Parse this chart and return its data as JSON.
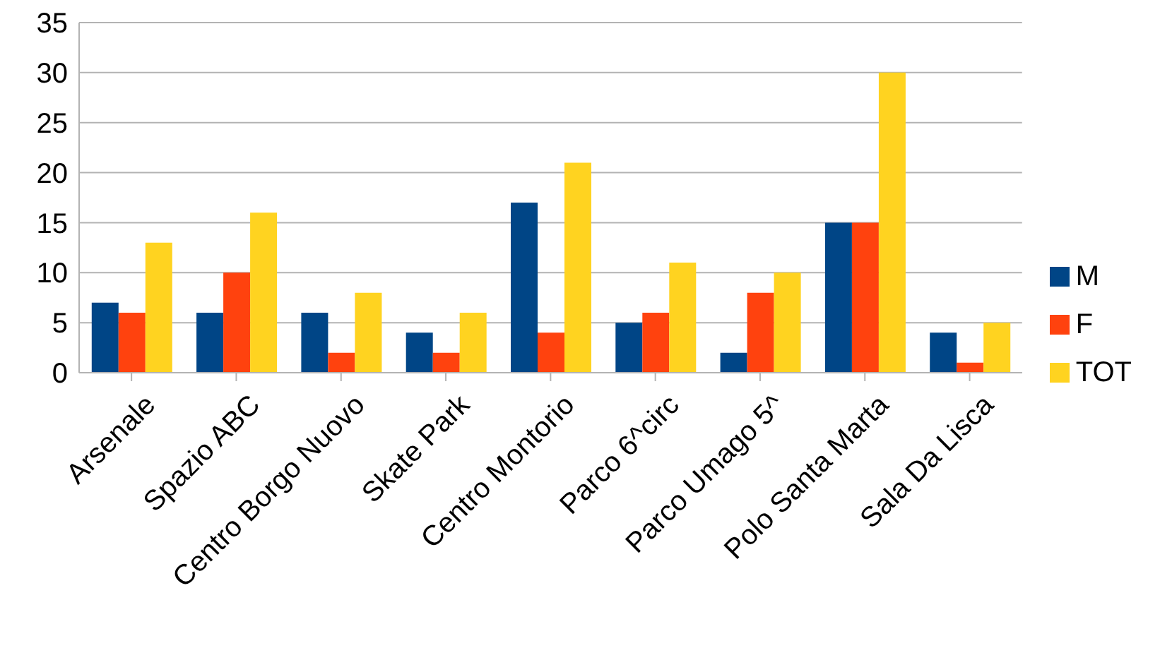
{
  "chart_data": {
    "type": "bar",
    "categories": [
      "Arsenale",
      "Spazio ABC",
      "Centro Borgo Nuovo",
      "Skate Park",
      "Centro Montorio",
      "Parco 6^circ",
      "Parco Umago 5^",
      "Polo Santa Marta",
      "Sala Da Lisca"
    ],
    "series": [
      {
        "name": "M",
        "color": "#004586",
        "values": [
          7,
          6,
          6,
          4,
          17,
          5,
          2,
          15,
          4
        ]
      },
      {
        "name": "F",
        "color": "#ff420e",
        "values": [
          6,
          10,
          2,
          2,
          4,
          6,
          8,
          15,
          1
        ]
      },
      {
        "name": "TOT",
        "color": "#ffd320",
        "values": [
          13,
          16,
          8,
          6,
          21,
          11,
          10,
          30,
          5
        ]
      }
    ],
    "ylim": [
      0,
      35
    ],
    "yticks": [
      0,
      5,
      10,
      15,
      20,
      25,
      30,
      35
    ],
    "grid": "y",
    "legend": "right"
  }
}
